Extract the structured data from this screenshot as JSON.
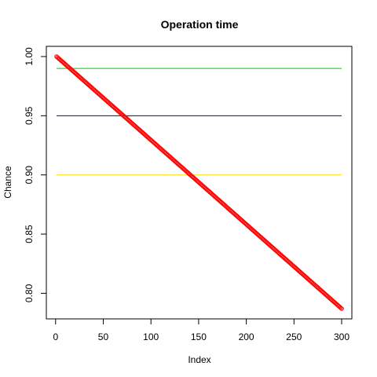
{
  "chart_data": {
    "type": "scatter",
    "title": "Operation time",
    "xlabel": "Index",
    "ylabel": "Chance",
    "xlim": [
      1,
      300
    ],
    "ylim": [
      0.787,
      1.0
    ],
    "x_ticks": [
      "0",
      "50",
      "100",
      "150",
      "200",
      "250",
      "300"
    ],
    "y_ticks": [
      "0.80",
      "0.85",
      "0.90",
      "0.95",
      "1.00"
    ],
    "grid": false,
    "legend": "none",
    "series": [
      {
        "color": "#ff0000",
        "marker": "open-circle",
        "x_start": 1,
        "x_end": 300,
        "y_start": 1.0,
        "y_end": 0.787,
        "count": 300
      }
    ],
    "reference_lines": [
      {
        "y": 0.99,
        "color": "#00cc00"
      },
      {
        "y": 0.95,
        "color": "#0000cc"
      },
      {
        "y": 0.9,
        "color": "#ffdd00"
      }
    ]
  }
}
